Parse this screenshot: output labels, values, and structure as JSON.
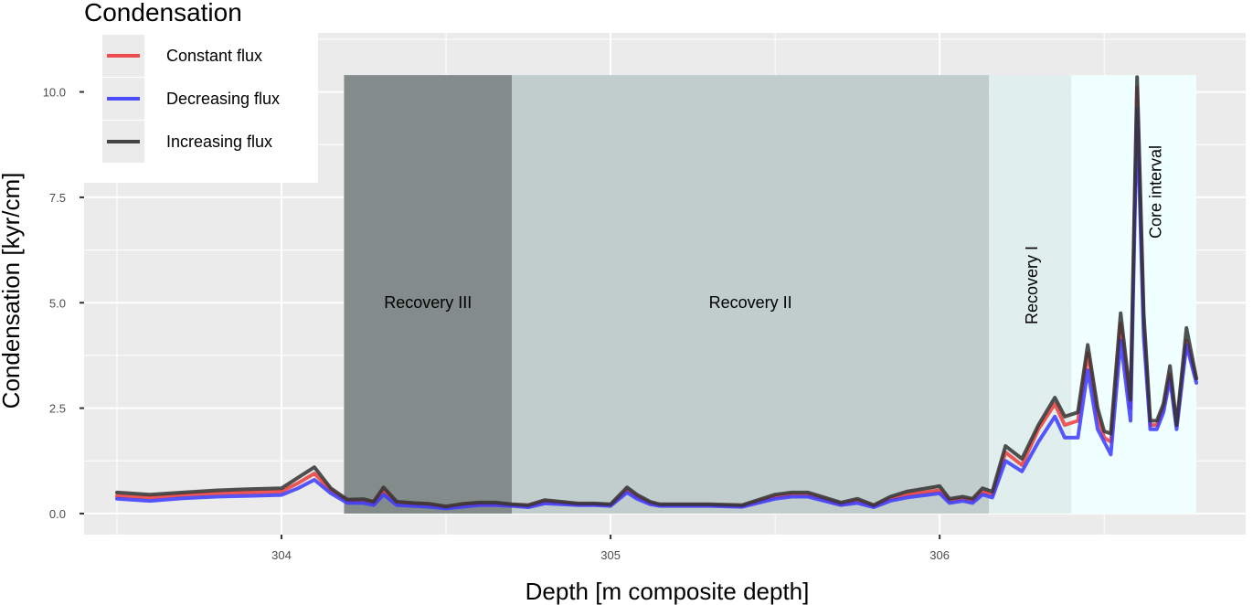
{
  "chart_data": {
    "type": "line",
    "title": "",
    "xlabel": "Depth [m composite depth]",
    "ylabel": "Condensation [kyr/cm]",
    "xlim": [
      303.4,
      306.93
    ],
    "ylim": [
      -0.5,
      11.4
    ],
    "xticks": [
      304,
      305,
      306
    ],
    "xtick_labels": [
      "304",
      "305",
      "306"
    ],
    "yticks": [
      0,
      2.5,
      5,
      7.5,
      10
    ],
    "ytick_labels": [
      "0.0",
      "2.5",
      "5.0",
      "7.5",
      "10.0"
    ],
    "grid": true,
    "legend": {
      "title": "Condensation",
      "placement": "top-left",
      "entries": [
        {
          "label": "Constant flux",
          "color": "#ee3b3b"
        },
        {
          "label": "Decreasing flux",
          "color": "#3b3bff"
        },
        {
          "label": "Increasing flux",
          "color": "#333333"
        }
      ]
    },
    "zones": [
      {
        "label": "Recovery III",
        "x_start": 304.19,
        "x_end": 304.7,
        "y_top": 10.4,
        "color": "#838b8b",
        "vertical_label": false
      },
      {
        "label": "Recovery II",
        "x_start": 304.7,
        "x_end": 306.15,
        "y_top": 10.4,
        "color": "#c1cdcd",
        "vertical_label": false
      },
      {
        "label": "Recovery I",
        "x_start": 306.15,
        "x_end": 306.4,
        "y_top": 10.4,
        "color": "#e0eeee",
        "vertical_label": true
      },
      {
        "label": "Core interval",
        "x_start": 306.4,
        "x_end": 306.78,
        "y_top": 10.4,
        "color": "#f0ffff",
        "vertical_label": true
      }
    ],
    "x": [
      303.5,
      303.6,
      303.7,
      303.8,
      303.9,
      304.0,
      304.05,
      304.1,
      304.15,
      304.2,
      304.25,
      304.28,
      304.31,
      304.35,
      304.4,
      304.45,
      304.5,
      304.55,
      304.6,
      304.65,
      304.7,
      304.75,
      304.8,
      304.85,
      304.9,
      304.95,
      305.0,
      305.05,
      305.08,
      305.12,
      305.15,
      305.2,
      305.3,
      305.4,
      305.5,
      305.55,
      305.6,
      305.7,
      305.75,
      305.8,
      305.85,
      305.9,
      306.0,
      306.03,
      306.07,
      306.1,
      306.13,
      306.16,
      306.2,
      306.25,
      306.3,
      306.35,
      306.38,
      306.42,
      306.45,
      306.48,
      306.5,
      306.52,
      306.55,
      306.58,
      306.6,
      306.62,
      306.64,
      306.66,
      306.68,
      306.7,
      306.72,
      306.75,
      306.78
    ],
    "series": [
      {
        "name": "Constant flux",
        "color": "#ee3b3b",
        "values": [
          0.42,
          0.38,
          0.44,
          0.48,
          0.5,
          0.52,
          0.72,
          0.95,
          0.55,
          0.3,
          0.3,
          0.25,
          0.55,
          0.25,
          0.22,
          0.2,
          0.15,
          0.2,
          0.22,
          0.22,
          0.2,
          0.18,
          0.28,
          0.25,
          0.22,
          0.22,
          0.2,
          0.55,
          0.4,
          0.25,
          0.2,
          0.2,
          0.2,
          0.18,
          0.4,
          0.45,
          0.45,
          0.22,
          0.3,
          0.18,
          0.35,
          0.45,
          0.55,
          0.3,
          0.35,
          0.3,
          0.52,
          0.45,
          1.45,
          1.15,
          2.0,
          2.6,
          2.1,
          2.2,
          3.8,
          2.3,
          1.8,
          1.7,
          4.5,
          2.5,
          10.1,
          4.5,
          2.1,
          2.1,
          2.5,
          3.3,
          2.1,
          4.1,
          3.2
        ]
      },
      {
        "name": "Decreasing flux",
        "color": "#3b3bff",
        "values": [
          0.35,
          0.3,
          0.36,
          0.4,
          0.42,
          0.44,
          0.6,
          0.8,
          0.48,
          0.25,
          0.25,
          0.2,
          0.45,
          0.2,
          0.18,
          0.16,
          0.12,
          0.16,
          0.2,
          0.2,
          0.18,
          0.15,
          0.24,
          0.22,
          0.2,
          0.2,
          0.18,
          0.5,
          0.35,
          0.22,
          0.18,
          0.18,
          0.18,
          0.16,
          0.35,
          0.4,
          0.4,
          0.2,
          0.25,
          0.15,
          0.3,
          0.38,
          0.48,
          0.25,
          0.3,
          0.25,
          0.45,
          0.38,
          1.25,
          1.0,
          1.7,
          2.3,
          1.8,
          1.8,
          3.4,
          2.0,
          1.7,
          1.4,
          4.1,
          2.2,
          9.6,
          4.2,
          2.0,
          2.0,
          2.4,
          3.2,
          2.0,
          4.0,
          3.1
        ]
      },
      {
        "name": "Increasing flux",
        "color": "#333333",
        "values": [
          0.5,
          0.45,
          0.5,
          0.55,
          0.58,
          0.6,
          0.85,
          1.1,
          0.6,
          0.33,
          0.34,
          0.28,
          0.62,
          0.28,
          0.25,
          0.23,
          0.17,
          0.23,
          0.26,
          0.26,
          0.22,
          0.2,
          0.32,
          0.28,
          0.24,
          0.24,
          0.22,
          0.62,
          0.45,
          0.28,
          0.22,
          0.22,
          0.22,
          0.2,
          0.45,
          0.5,
          0.5,
          0.26,
          0.35,
          0.2,
          0.4,
          0.52,
          0.65,
          0.35,
          0.4,
          0.35,
          0.6,
          0.52,
          1.6,
          1.3,
          2.1,
          2.75,
          2.3,
          2.4,
          4.0,
          2.5,
          1.95,
          1.9,
          4.75,
          2.7,
          10.35,
          4.75,
          2.2,
          2.2,
          2.6,
          3.5,
          2.1,
          4.4,
          3.2
        ]
      }
    ]
  }
}
